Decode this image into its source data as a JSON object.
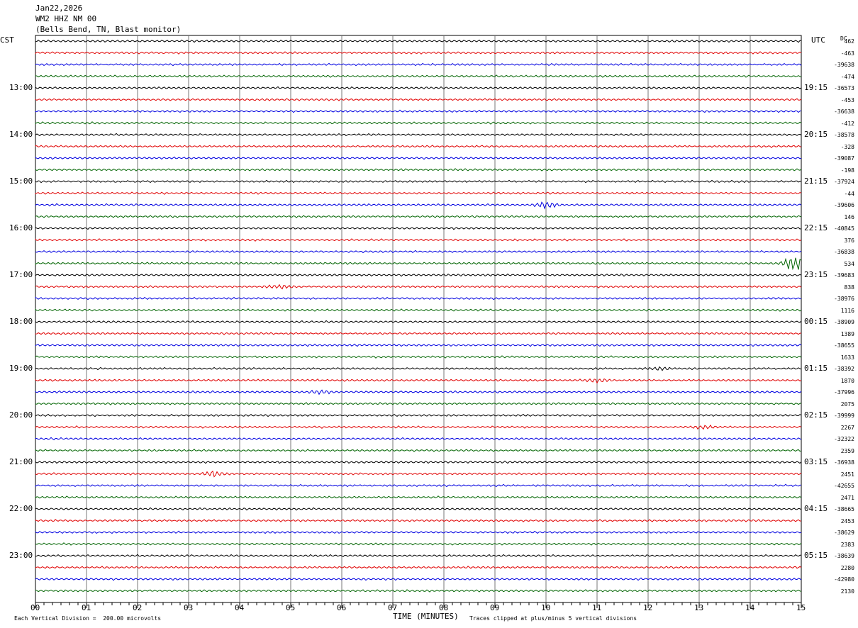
{
  "header": {
    "date": "Jan22,2026",
    "station": "WM2 HHZ NM 00",
    "location": "(Bells Bend, TN, Blast monitor)"
  },
  "left_tz": "CST",
  "right_tz": "UTC",
  "dc_label": "DC",
  "footer": {
    "scale": "Each Vertical Division =  200.00 microvolts",
    "xlabel": "TIME (MINUTES)",
    "clip": "Traces clipped at plus/minus 5 vertical divisions"
  },
  "chart_data": {
    "type": "line",
    "xlabel": "TIME (MINUTES)",
    "xlim": [
      0,
      15
    ],
    "x_ticks": [
      "00",
      "01",
      "02",
      "03",
      "04",
      "05",
      "06",
      "07",
      "08",
      "09",
      "10",
      "11",
      "12",
      "13",
      "14",
      "15"
    ],
    "trace_colors": [
      "#000000",
      "#e00000",
      "#0000e0",
      "#006400"
    ],
    "trace_count": 48,
    "left_hour_labels": [
      "13:00",
      "14:00",
      "15:00",
      "16:00",
      "17:00",
      "18:00",
      "19:00",
      "20:00",
      "21:00",
      "22:00",
      "23:00"
    ],
    "right_hour_labels": [
      "19:15",
      "20:15",
      "21:15",
      "22:15",
      "23:15",
      "00:15",
      "01:15",
      "02:15",
      "03:15",
      "04:15",
      "05:15"
    ],
    "dc_offsets": [
      "462",
      "-463",
      "-39638",
      "-474",
      "-36573",
      "-453",
      "-36638",
      "-412",
      "-38578",
      "-328",
      "-39087",
      "-198",
      "-37924",
      "-44",
      "-39606",
      "146",
      "-40845",
      "376",
      "-36838",
      "534",
      "-39683",
      "838",
      "-38976",
      "1116",
      "-38909",
      "1389",
      "-38655",
      "1633",
      "-38392",
      "1870",
      "-37996",
      "2075",
      "-39999",
      "2267",
      "-32322",
      "2359",
      "-36938",
      "2451",
      "-42655",
      "2471",
      "-38665",
      "2453",
      "-38629",
      "2383",
      "-38639",
      "2280",
      "-42980",
      "2130"
    ],
    "events": [
      {
        "trace": 14,
        "minute": 10.0,
        "amp": 3
      },
      {
        "trace": 19,
        "minute": 14.9,
        "amp": 8
      },
      {
        "trace": 21,
        "minute": 4.8,
        "amp": 2
      },
      {
        "trace": 37,
        "minute": 3.5,
        "amp": 2.5
      },
      {
        "trace": 29,
        "minute": 11.0,
        "amp": 1.5
      },
      {
        "trace": 33,
        "minute": 13.1,
        "amp": 1.5
      },
      {
        "trace": 30,
        "minute": 5.6,
        "amp": 1.5
      },
      {
        "trace": 28,
        "minute": 12.2,
        "amp": 1.2
      }
    ]
  }
}
